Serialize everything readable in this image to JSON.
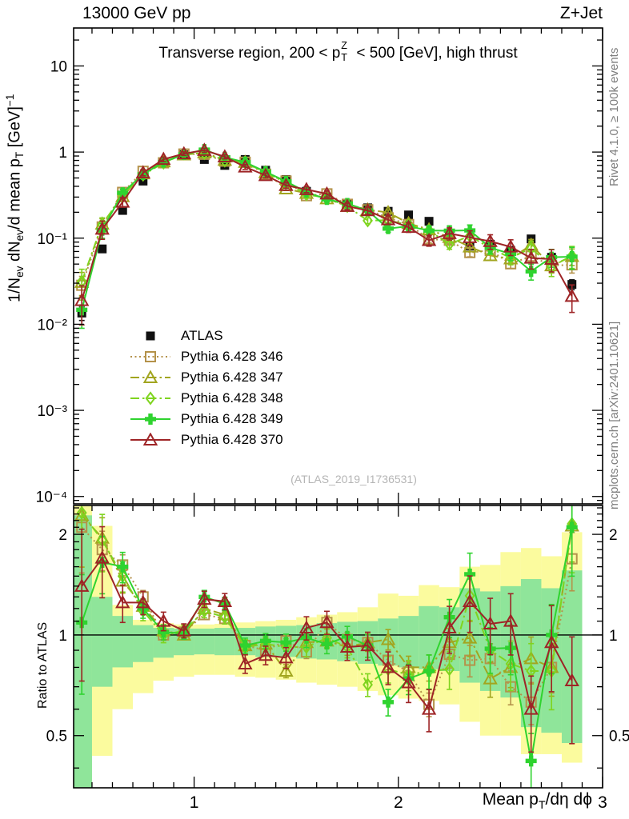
{
  "header": {
    "left": "13000 GeV pp",
    "right": "Z+Jet"
  },
  "panel_title": {
    "pre": "Transverse region, 200 < p",
    "stack_sup": "Z",
    "stack_sub": "T",
    "post": " < 500 [GeV], high thrust"
  },
  "y_axis_label": {
    "p1": "1/N",
    "s1": "ev",
    "p2": " dN",
    "s2": "ev",
    "p3": "/d mean p",
    "s3": "T",
    "p4": " [GeV]",
    "sup": "−1"
  },
  "ratio_axis_label": "Ratio to ATLAS",
  "x_axis_label": {
    "p1": "Mean p",
    "s1": "T",
    "p2": "/dη dϕ"
  },
  "side_notes": {
    "top": "Rivet 4.1.0, ≥ 100k events",
    "bottom": "mcplots.cern.ch [arXiv:2401.10621]"
  },
  "watermark": "(ATLAS_2019_I1736531)",
  "axes": {
    "main_yticks": [
      {
        "v": 10,
        "label": "10"
      },
      {
        "v": 1,
        "label": "1"
      },
      {
        "v": 0.1,
        "label": "10⁻¹"
      },
      {
        "v": 0.01,
        "label": "10⁻²"
      },
      {
        "v": 0.001,
        "label": "10⁻³"
      },
      {
        "v": 0.0001,
        "label": "10⁻⁴"
      }
    ],
    "ratio_yticks": [
      {
        "v": 0.5,
        "label": "0.5"
      },
      {
        "v": 1,
        "label": "1"
      },
      {
        "v": 2,
        "label": "2"
      }
    ],
    "xticks": [
      {
        "v": 1,
        "label": "1"
      },
      {
        "v": 2,
        "label": "2"
      },
      {
        "v": 3,
        "label": "3"
      }
    ]
  },
  "chart_data": {
    "type": "line",
    "title": "Transverse region, 200 < pTZ < 500 [GeV], high thrust",
    "xlabel": "Mean pT/dη dϕ",
    "ylabel": "1/Nev dNev/d mean pT [GeV]−1",
    "ratio_ylabel": "Ratio to ATLAS",
    "xlim": [
      0.41,
      3.0
    ],
    "main_ylim": [
      8.2e-05,
      27.6
    ],
    "ratio_ylim": [
      0.349,
      2.44
    ],
    "bin_width": 0.1,
    "x": [
      0.45,
      0.55,
      0.65,
      0.75,
      0.85,
      0.95,
      1.05,
      1.15,
      1.25,
      1.35,
      1.45,
      1.55,
      1.65,
      1.75,
      1.85,
      1.95,
      2.05,
      2.15,
      2.25,
      2.35,
      2.45,
      2.55,
      2.65,
      2.75,
      2.85
    ],
    "rel_err": [
      0.3,
      0.15,
      0.08,
      0.05,
      0.04,
      0.03,
      0.035,
      0.035,
      0.04,
      0.04,
      0.045,
      0.05,
      0.05,
      0.055,
      0.06,
      0.07,
      0.08,
      0.09,
      0.1,
      0.12,
      0.12,
      0.13,
      0.16,
      0.18,
      0.22
    ],
    "series": [
      {
        "name": "ATLAS",
        "color": "#111111",
        "marker": "square-filled",
        "line": "none",
        "err_scale": 0.6,
        "values": [
          0.0135,
          0.075,
          0.21,
          0.46,
          0.75,
          0.93,
          0.82,
          0.7,
          0.82,
          0.615,
          0.48,
          0.35,
          0.3,
          0.255,
          0.225,
          0.205,
          0.186,
          0.157,
          0.108,
          0.081,
          0.085,
          0.072,
          0.098,
          0.06,
          0.029
        ]
      },
      {
        "name": "Pythia 6.428 346",
        "color": "#b4924a",
        "marker": "square-open",
        "line": "dotted",
        "err_scale": 0.9,
        "ratio_to_atlas": [
          2.1,
          1.8,
          1.62,
          1.3,
          1.0,
          1.02,
          1.15,
          1.12,
          0.93,
          0.9,
          0.96,
          0.89,
          1.09,
          0.97,
          0.95,
          0.84,
          0.775,
          0.62,
          0.875,
          0.84,
          0.85,
          0.7,
          0.63,
          0.8,
          1.69
        ]
      },
      {
        "name": "Pythia 6.428 347",
        "color": "#a2a51f",
        "marker": "triangle-open",
        "line": "dashdot",
        "err_scale": 1.0,
        "ratio_to_atlas": [
          2.28,
          1.95,
          1.45,
          1.22,
          1.03,
          1.0,
          1.2,
          1.15,
          0.93,
          0.94,
          0.78,
          0.95,
          0.96,
          0.92,
          0.95,
          0.97,
          0.8,
          0.8,
          0.95,
          0.98,
          0.74,
          0.8,
          0.85,
          0.8,
          2.12
        ]
      },
      {
        "name": "Pythia 6.428 348",
        "color": "#7fd41f",
        "marker": "diamond-open",
        "line": "dashdot",
        "err_scale": 1.3,
        "ratio_to_atlas": [
          2.32,
          1.92,
          1.5,
          1.18,
          1.0,
          1.03,
          1.18,
          1.13,
          0.92,
          0.94,
          0.92,
          0.92,
          0.98,
          0.92,
          0.71,
          0.79,
          0.76,
          0.78,
          0.79,
          1.31,
          0.9,
          0.82,
          0.78,
          0.78,
          2.15
        ]
      },
      {
        "name": "Pythia 6.428 349",
        "color": "#2fd32f",
        "marker": "plus-filled",
        "line": "solid",
        "err_scale": 1.3,
        "ratio_to_atlas": [
          1.09,
          1.65,
          1.6,
          1.2,
          1.02,
          1.01,
          1.3,
          1.24,
          0.93,
          0.96,
          0.95,
          0.98,
          0.94,
          0.99,
          0.93,
          0.63,
          0.74,
          0.78,
          1.13,
          1.52,
          0.91,
          0.915,
          0.42,
          1.0,
          2.1
        ]
      },
      {
        "name": "Pythia 6.428 370",
        "color": "#9e2426",
        "marker": "triangle-open",
        "line": "solid",
        "err_scale": 1.6,
        "ratio_to_atlas": [
          1.4,
          1.7,
          1.25,
          1.25,
          1.1,
          1.03,
          1.28,
          1.26,
          0.82,
          0.87,
          0.855,
          1.05,
          1.09,
          0.92,
          0.93,
          0.8,
          0.72,
          0.6,
          1.05,
          1.26,
          1.08,
          1.1,
          0.6,
          0.95,
          0.73
        ]
      }
    ],
    "bands": {
      "yellow_color": "#fbfb9e",
      "green_color": "#8fe59a",
      "yellow": [
        [
          0.34,
          2.46
        ],
        [
          0.435,
          2.12
        ],
        [
          0.6,
          1.23
        ],
        [
          0.67,
          1.11
        ],
        [
          0.73,
          1.085
        ],
        [
          0.75,
          1.075
        ],
        [
          0.76,
          1.075
        ],
        [
          0.76,
          1.08
        ],
        [
          0.75,
          1.09
        ],
        [
          0.745,
          1.1
        ],
        [
          0.735,
          1.11
        ],
        [
          0.72,
          1.13
        ],
        [
          0.71,
          1.15
        ],
        [
          0.7,
          1.17
        ],
        [
          0.68,
          1.21
        ],
        [
          0.66,
          1.33
        ],
        [
          0.645,
          1.31
        ],
        [
          0.635,
          1.41
        ],
        [
          0.62,
          1.39
        ],
        [
          0.55,
          1.6
        ],
        [
          0.5,
          1.62
        ],
        [
          0.5,
          1.77
        ],
        [
          0.44,
          1.82
        ],
        [
          0.44,
          1.72
        ],
        [
          0.415,
          2.03
        ]
      ],
      "green": [
        [
          0.34,
          2.28
        ],
        [
          0.7,
          1.3
        ],
        [
          0.8,
          1.14
        ],
        [
          0.83,
          1.07
        ],
        [
          0.855,
          1.05
        ],
        [
          0.87,
          1.045
        ],
        [
          0.875,
          1.045
        ],
        [
          0.87,
          1.05
        ],
        [
          0.87,
          1.05
        ],
        [
          0.86,
          1.06
        ],
        [
          0.86,
          1.065
        ],
        [
          0.85,
          1.07
        ],
        [
          0.845,
          1.085
        ],
        [
          0.835,
          1.095
        ],
        [
          0.82,
          1.1
        ],
        [
          0.81,
          1.12
        ],
        [
          0.8,
          1.14
        ],
        [
          0.79,
          1.22
        ],
        [
          0.78,
          1.21
        ],
        [
          0.72,
          1.38
        ],
        [
          0.68,
          1.35
        ],
        [
          0.65,
          1.4
        ],
        [
          0.53,
          1.47
        ],
        [
          0.51,
          1.38
        ],
        [
          0.475,
          1.56
        ]
      ]
    },
    "legend_position": "upper-left-inside",
    "grid": false
  }
}
